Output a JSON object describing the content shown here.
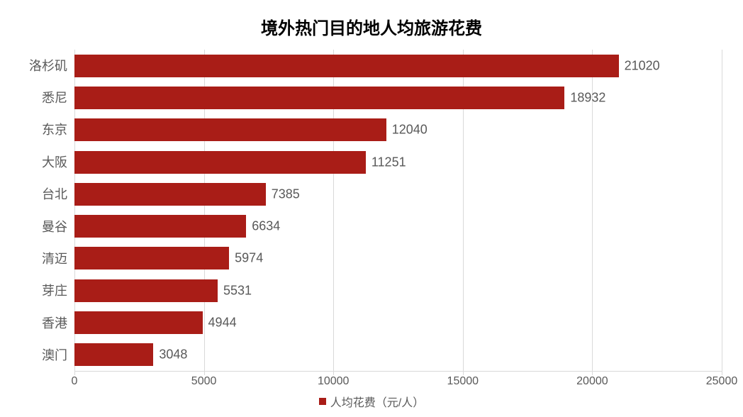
{
  "chart": {
    "type": "horizontal-bar",
    "title": "境外热门目的地人均旅游花费",
    "title_fontsize": 24,
    "title_fontweight": "bold",
    "title_color": "#000000",
    "background_color": "#ffffff",
    "categories": [
      "洛杉矶",
      "悉尼",
      "东京",
      "大阪",
      "台北",
      "曼谷",
      "清迈",
      "芽庄",
      "香港",
      "澳门"
    ],
    "values": [
      21020,
      18932,
      12040,
      11251,
      7385,
      6634,
      5974,
      5531,
      4944,
      3048
    ],
    "bar_color": "#a91d17",
    "bar_height_ratio": 0.7,
    "value_label_color": "#595959",
    "value_label_fontsize": 18,
    "category_label_color": "#595959",
    "category_label_fontsize": 18,
    "x_axis": {
      "min": 0,
      "max": 25000,
      "tick_step": 5000,
      "ticks": [
        0,
        5000,
        10000,
        15000,
        20000,
        25000
      ],
      "tick_color": "#595959",
      "tick_fontsize": 16,
      "line_color": "#d9d9d9"
    },
    "gridline_color": "#d9d9d9",
    "legend": {
      "label": "人均花费（元/人）",
      "swatch_color": "#a91d17",
      "label_color": "#595959",
      "label_fontsize": 16,
      "position": "bottom"
    }
  }
}
